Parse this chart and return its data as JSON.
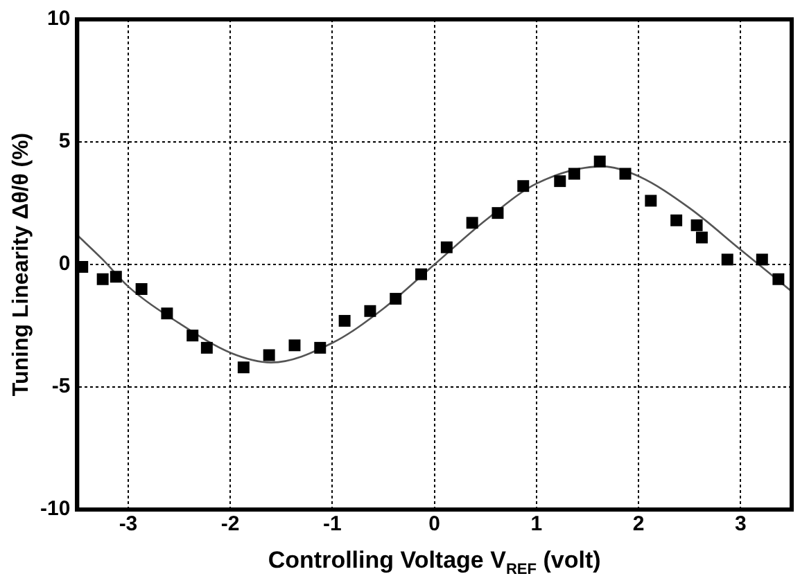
{
  "chart_data": {
    "type": "scatter",
    "xlabel": "Controlling Voltage V$_{REF}$ (volt)",
    "ylabel": "Tuning Linearity Δθ/θ (%)",
    "xlim": [
      -3.5,
      3.5
    ],
    "xticks": [
      -3,
      -2,
      -1,
      0,
      1,
      2,
      3
    ],
    "ylim": [
      -10,
      10
    ],
    "yticks": [
      -10,
      -5,
      0,
      5,
      10
    ],
    "grid": true,
    "legend": false,
    "marker": "square",
    "series": [
      {
        "color": "#000000",
        "x": [
          -3.45,
          -3.25,
          -3.12,
          -2.87,
          -2.62,
          -2.37,
          -2.23,
          -1.87,
          -1.62,
          -1.37,
          -1.12,
          -0.88,
          -0.63,
          -0.38,
          -0.13,
          0.12,
          0.37,
          0.62,
          0.87,
          1.23,
          1.37,
          1.62,
          1.87,
          2.12,
          2.37,
          2.57,
          2.62,
          2.87,
          3.21,
          3.37
        ],
        "values": [
          -0.1,
          -0.6,
          -0.5,
          -1.0,
          -2.0,
          -2.9,
          -3.4,
          -4.2,
          -3.7,
          -3.3,
          -3.4,
          -2.3,
          -1.9,
          -1.4,
          -0.4,
          0.7,
          1.7,
          2.1,
          3.2,
          3.4,
          3.7,
          4.2,
          3.7,
          2.6,
          1.8,
          1.6,
          1.1,
          0.2,
          0.2,
          -0.6
        ]
      },
      {
        "type": "line",
        "color": "#555555",
        "marker": "none",
        "line_style": "solid",
        "x": [
          -3.5,
          -3.25,
          -3.0,
          -2.5,
          -2.0,
          -1.6,
          -1.0,
          -0.5,
          0.0,
          0.5,
          1.0,
          1.65,
          2.0,
          2.5,
          3.0,
          3.5
        ],
        "values": [
          1.2,
          0.2,
          -0.9,
          -2.4,
          -3.6,
          -4.0,
          -3.2,
          -1.8,
          0.0,
          1.8,
          3.3,
          4.0,
          3.6,
          2.3,
          0.6,
          -1.1
        ]
      }
    ]
  }
}
